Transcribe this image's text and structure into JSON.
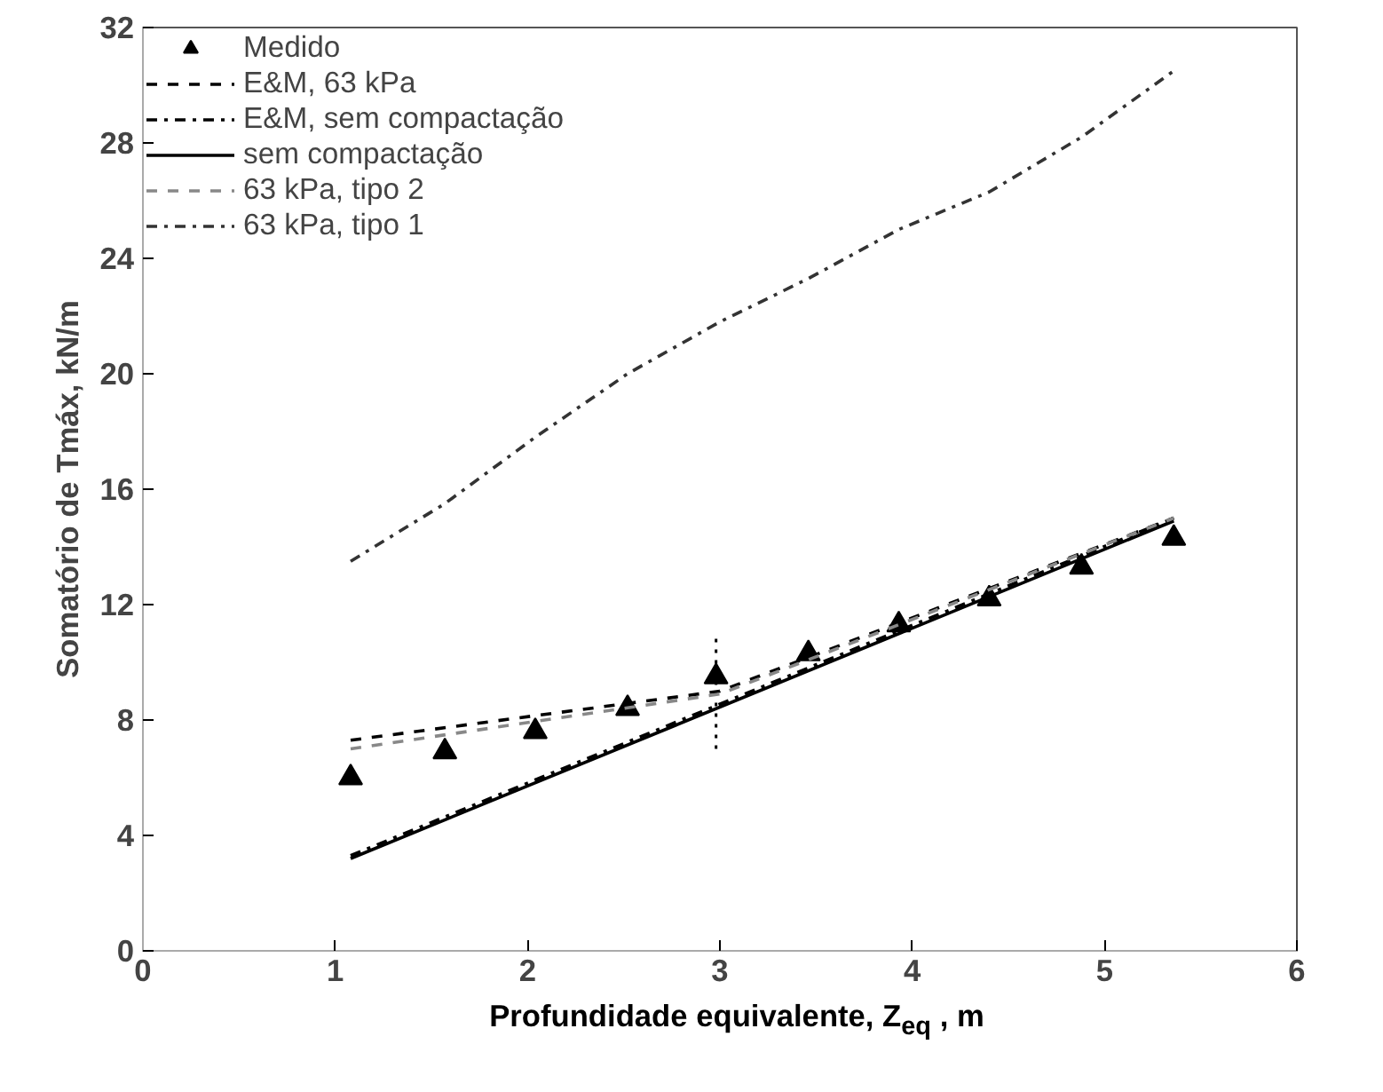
{
  "chart_data": {
    "type": "line",
    "xlabel": "Profundidade equivalente, Z$_{eq}$ , m",
    "ylabel": "Somatório de Tmáx, kN/m",
    "xlim": [
      0,
      6
    ],
    "ylim": [
      0,
      32
    ],
    "xticks": [
      0,
      1,
      2,
      3,
      4,
      5,
      6
    ],
    "yticks": [
      0,
      4,
      8,
      12,
      16,
      20,
      24,
      28,
      32
    ],
    "grid": false,
    "legend": "top left",
    "series": [
      {
        "name": "Medido",
        "type": "scatter",
        "marker": "triangle",
        "color": "#000000",
        "x": [
          1.08,
          1.57,
          2.04,
          2.52,
          2.98,
          3.46,
          3.93,
          4.4,
          4.88,
          5.36
        ],
        "values": [
          6.0,
          6.9,
          7.6,
          8.4,
          9.5,
          10.3,
          11.3,
          12.2,
          13.3,
          14.3
        ],
        "errors": [
          null,
          null,
          null,
          null,
          [
            7.0,
            11.0
          ],
          null,
          null,
          null,
          null,
          null
        ]
      },
      {
        "name": "E&M, 63 kPa",
        "line_style": "dashed",
        "color": "#000000",
        "x": [
          1.08,
          3.0,
          5.36
        ],
        "values": [
          7.3,
          9.0,
          15.0
        ]
      },
      {
        "name": "E&M, sem compactação",
        "line_style": "dashdot",
        "color": "#000000",
        "x": [
          1.08,
          5.36
        ],
        "values": [
          3.3,
          15.0
        ]
      },
      {
        "name": "sem compactação",
        "line_style": "solid",
        "color": "#000000",
        "x": [
          1.08,
          5.36
        ],
        "values": [
          3.2,
          14.9
        ]
      },
      {
        "name": "63 kPa, tipo 2",
        "line_style": "dashed",
        "color": "#888888",
        "x": [
          1.08,
          3.0,
          5.36
        ],
        "values": [
          7.0,
          8.9,
          15.0
        ]
      },
      {
        "name": "63 kPa, tipo 1",
        "line_style": "dashdot",
        "color": "#333333",
        "x": [
          1.08,
          1.57,
          2.04,
          2.52,
          3.0,
          3.46,
          3.93,
          4.4,
          4.88,
          5.36
        ],
        "values": [
          13.5,
          15.5,
          17.8,
          20.0,
          21.8,
          23.3,
          25.0,
          26.3,
          28.2,
          30.5
        ]
      }
    ]
  }
}
